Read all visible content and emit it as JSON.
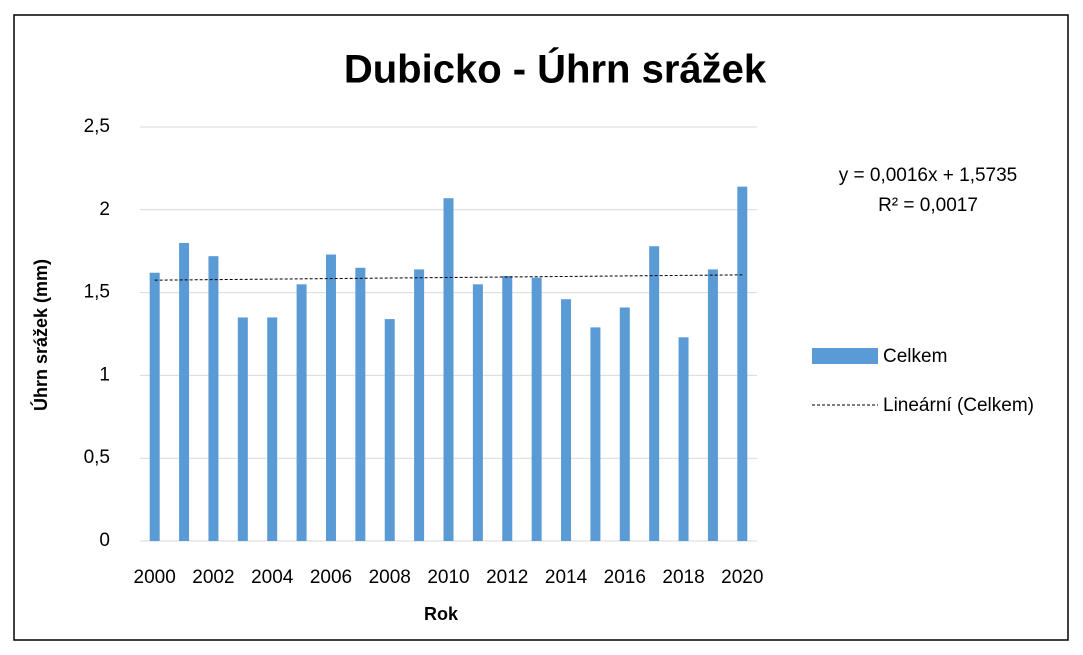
{
  "chart_data": {
    "type": "bar",
    "title": "Dubicko - Úhrn srážek",
    "x_label": "Rok",
    "y_label": "Úhrn srážek (mm)",
    "categories": [
      2000,
      null,
      2002,
      null,
      2004,
      null,
      2006,
      null,
      2008,
      null,
      2010,
      null,
      2012,
      null,
      2014,
      null,
      2016,
      null,
      2018,
      null,
      2020
    ],
    "series": [
      {
        "name": "Celkem",
        "color": "#5b9bd5",
        "values": [
          1.62,
          1.8,
          1.72,
          1.35,
          1.35,
          1.55,
          1.73,
          1.65,
          1.34,
          1.64,
          2.07,
          1.55,
          1.6,
          1.59,
          1.46,
          1.29,
          1.41,
          1.78,
          1.23,
          1.64,
          2.14
        ]
      }
    ],
    "trendline": {
      "name": "Lineární (Celkem)",
      "slope": 0.0016,
      "intercept": 1.5735,
      "equation": "y = 0,0016x + 1,5735",
      "r2": "R² = 0,0017"
    },
    "ylim": [
      0,
      2.5
    ],
    "yticks": [
      0,
      {
        "value": 0.5,
        "label": "0,5"
      },
      1,
      {
        "value": 1.5,
        "label": "1,5"
      },
      2,
      {
        "value": 2.5,
        "label": "2,5"
      }
    ],
    "grid": true,
    "legend": "right"
  }
}
